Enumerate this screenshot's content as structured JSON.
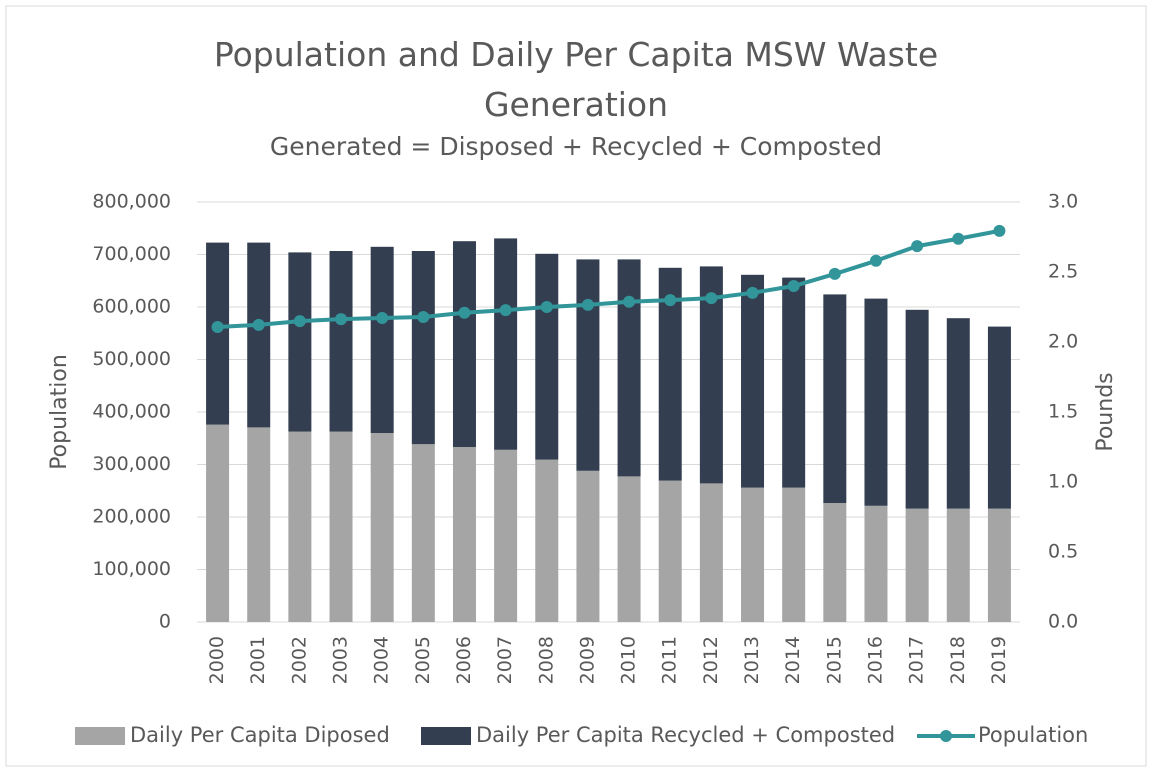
{
  "chart_data": {
    "type": "bar-line",
    "title": "Population and Daily Per Capita MSW Waste Generation",
    "subtitle": "Generated = Disposed + Recycled + Composted",
    "ylabel": "Population",
    "y2label": "Pounds",
    "categories": [
      "2000",
      "2001",
      "2002",
      "2003",
      "2004",
      "2005",
      "2006",
      "2007",
      "2008",
      "2009",
      "2010",
      "2011",
      "2012",
      "2013",
      "2014",
      "2015",
      "2016",
      "2017",
      "2018",
      "2019"
    ],
    "series": [
      {
        "name": "Daily Per Capita Diposed",
        "color": "#a5a5a5",
        "axis": "y2",
        "kind": "bar",
        "values": [
          1.41,
          1.39,
          1.36,
          1.36,
          1.35,
          1.27,
          1.25,
          1.23,
          1.16,
          1.08,
          1.04,
          1.01,
          0.99,
          0.96,
          0.96,
          0.85,
          0.83,
          0.81,
          0.81,
          0.81
        ]
      },
      {
        "name": "Daily Per Capita Recycled + Composted",
        "color": "#333f50",
        "axis": "y2",
        "kind": "bar",
        "values": [
          1.3,
          1.32,
          1.28,
          1.29,
          1.33,
          1.38,
          1.47,
          1.51,
          1.47,
          1.51,
          1.55,
          1.52,
          1.55,
          1.52,
          1.5,
          1.49,
          1.48,
          1.42,
          1.36,
          1.3
        ]
      },
      {
        "name": "Population",
        "color": "#31959a",
        "kind": "line",
        "values": [
          562000,
          566000,
          573000,
          577000,
          579000,
          581000,
          589000,
          594000,
          600000,
          604000,
          610000,
          613000,
          617000,
          627000,
          640000,
          663000,
          688000,
          716000,
          730000,
          745000
        ]
      }
    ],
    "ylim": [
      0,
      800000
    ],
    "yticks": [
      0,
      {
        "value": 100000,
        "label": "100,000"
      },
      {
        "value": 200000,
        "label": "200,000"
      },
      {
        "value": 300000,
        "label": "300,000"
      },
      {
        "value": 400000,
        "label": "400,000"
      },
      {
        "value": 500000,
        "label": "500,000"
      },
      {
        "value": 600000,
        "label": "600,000"
      },
      {
        "value": 700000,
        "label": "700,000"
      },
      {
        "value": 800000,
        "label": "800,000"
      }
    ],
    "y2lim": [
      0,
      3
    ],
    "y2ticks": [
      {
        "value": 0,
        "label": "0.0"
      },
      0.5,
      {
        "value": 1,
        "label": "1.0"
      },
      1.5,
      {
        "value": 2,
        "label": "2.0"
      },
      2.5,
      {
        "value": 3,
        "label": "3.0"
      }
    ],
    "grid": true,
    "stacked": true,
    "legend": "bottom"
  }
}
